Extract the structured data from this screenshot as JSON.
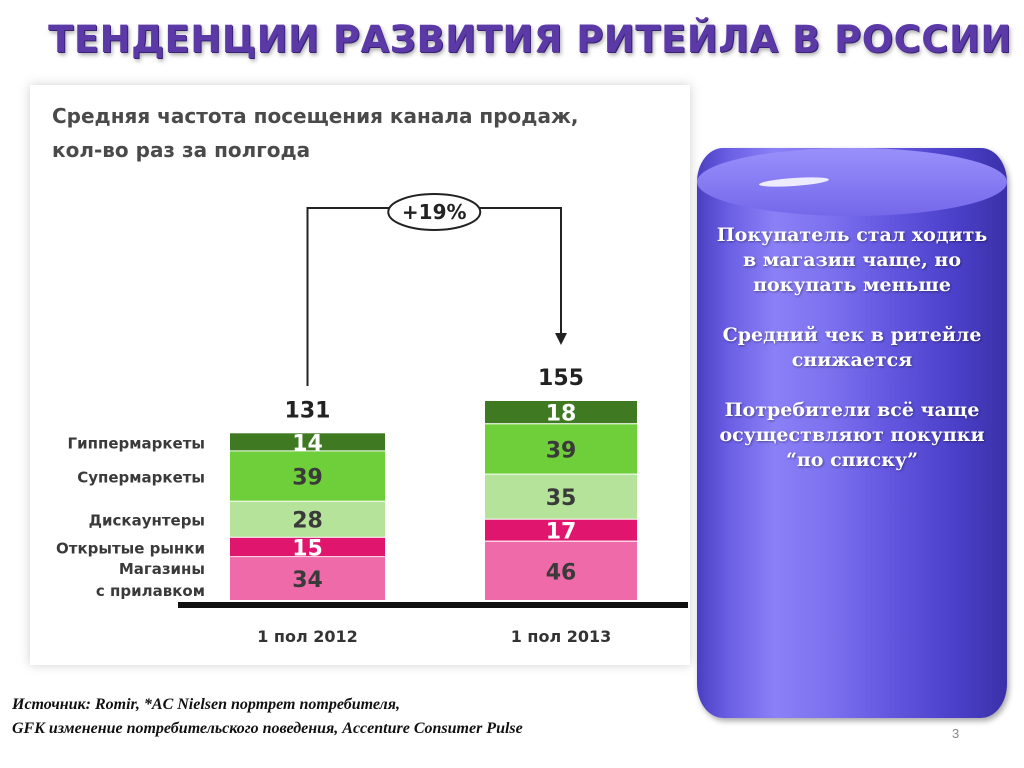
{
  "slide": {
    "title": "ТЕНДЕНЦИИ РАЗВИТИЯ РИТЕЙЛА В РОССИИ",
    "page_number": "3",
    "source_line1": "Источник: Romir, *AC Nielsen портрет потребителя,",
    "source_line2": "GFK изменение потребительского поведения, Accenture Consumer Pulse"
  },
  "callout": {
    "p1": "Покупатель стал ходить в магазин чаще, но покупать меньше",
    "p2": "Средний чек в ритейле снижается",
    "p3": "Потребители всё чаще осуществляют покупки",
    "p4": "“по списку”"
  },
  "chart_data": {
    "type": "bar",
    "stacked": true,
    "title_lines": [
      "Средняя частота посещения канала продаж,",
      "кол-во раз за полгода"
    ],
    "categories": [
      "1 пол 2012",
      "1 пол 2013"
    ],
    "totals": [
      131,
      155
    ],
    "change_label": "+19%",
    "series": [
      {
        "name": "Магазины с прилавком",
        "label_lines": [
          "Магазины",
          "с прилавком"
        ],
        "values": [
          34,
          46
        ],
        "color": "#ee6aa8",
        "text_color": "#3a3a3a"
      },
      {
        "name": "Открытые рынки",
        "label_lines": [
          "Открытые рынки"
        ],
        "values": [
          15,
          17
        ],
        "color": "#e0156e",
        "text_color": "#ffffff"
      },
      {
        "name": "Дискаунтеры",
        "label_lines": [
          "Дискаунтеры"
        ],
        "values": [
          28,
          35
        ],
        "color": "#b5e39a",
        "text_color": "#3a3a3a"
      },
      {
        "name": "Супермаркеты",
        "label_lines": [
          "Супермаркеты"
        ],
        "values": [
          39,
          39
        ],
        "color": "#6fcf3a",
        "text_color": "#3a3a3a"
      },
      {
        "name": "Гиппермаркеты",
        "label_lines": [
          "Гиппермаркеты"
        ],
        "values": [
          14,
          18
        ],
        "color": "#3f7a22",
        "text_color": "#ffffff"
      }
    ]
  }
}
